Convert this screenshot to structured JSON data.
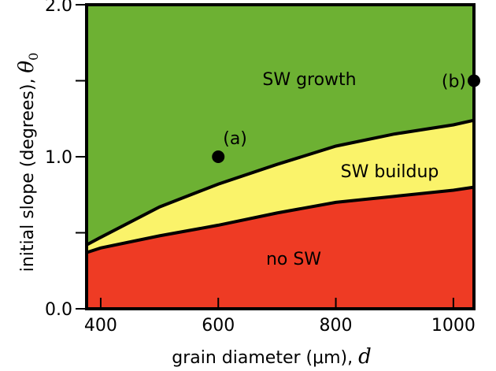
{
  "chart_data": {
    "type": "area",
    "title": "",
    "xlabel": "grain diameter (μm), ",
    "xlabel_symbol": "d",
    "ylabel": "initial slope (degrees), ",
    "ylabel_symbol": "θ",
    "ylabel_symbol_subscript": "0",
    "xlim": [
      376,
      1035
    ],
    "ylim": [
      0.0,
      2.0
    ],
    "x_ticks": [
      400,
      600,
      800,
      1000
    ],
    "x_tick_labels": [
      "400",
      "600",
      "800",
      "1000"
    ],
    "y_ticks": [
      0.0,
      0.5,
      1.0,
      1.5,
      2.0
    ],
    "y_tick_labels": [
      "0.0",
      "",
      "1.0",
      "",
      "2.0"
    ],
    "grid": false,
    "regions": [
      {
        "name": "no SW",
        "color": "#EE3B24"
      },
      {
        "name": "SW buildup",
        "color": "#FAF36A"
      },
      {
        "name": "SW growth",
        "color": "#6DB133"
      }
    ],
    "boundaries": {
      "lower": {
        "x": [
          376,
          400,
          500,
          600,
          700,
          800,
          900,
          1000,
          1035
        ],
        "y": [
          0.37,
          0.4,
          0.48,
          0.55,
          0.63,
          0.7,
          0.74,
          0.78,
          0.8
        ]
      },
      "upper": {
        "x": [
          376,
          400,
          500,
          600,
          700,
          800,
          900,
          1000,
          1035
        ],
        "y": [
          0.42,
          0.47,
          0.67,
          0.82,
          0.95,
          1.07,
          1.15,
          1.21,
          1.24
        ]
      }
    },
    "points": [
      {
        "label": "(a)",
        "x": 600,
        "y": 1.0
      },
      {
        "label": "(b)",
        "x": 1035,
        "y": 1.5
      }
    ]
  }
}
